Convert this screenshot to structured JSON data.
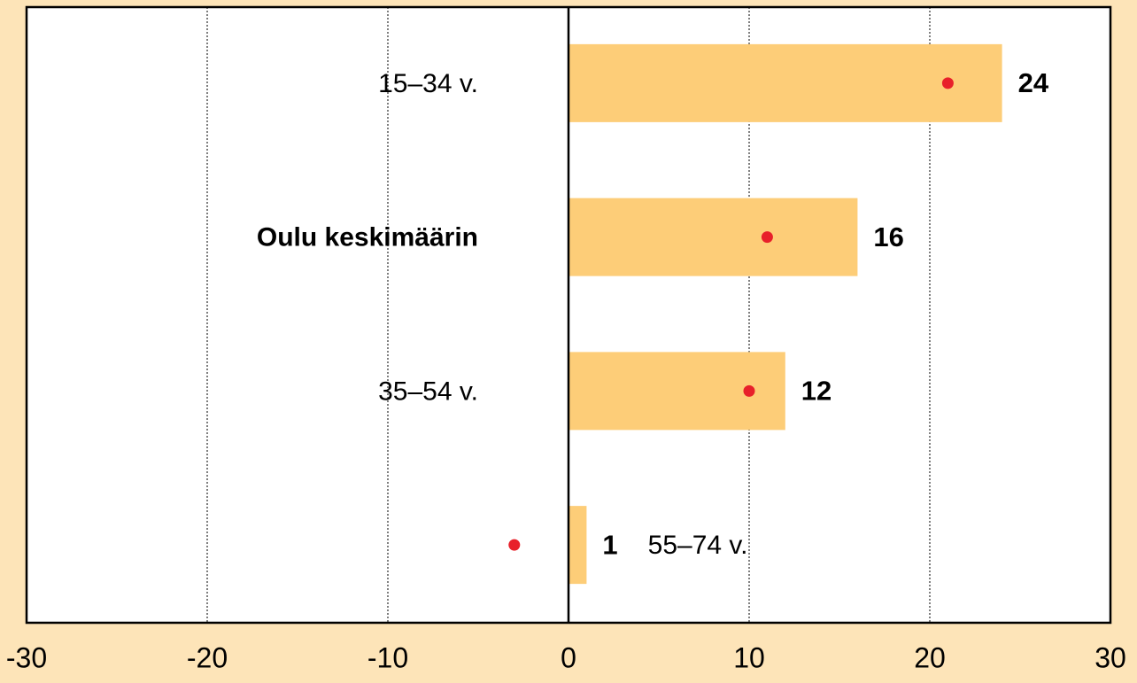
{
  "chart_data": {
    "type": "bar",
    "orientation": "horizontal",
    "categories": [
      "15–34 v.",
      "Oulu keskimäärin",
      "35–54 v.",
      "55–74 v."
    ],
    "highlight": 1,
    "series": [
      {
        "kind": "bar",
        "color": "#fdcd78",
        "values": [
          24,
          16,
          12,
          1
        ]
      },
      {
        "kind": "dot",
        "color": "#e8202a",
        "values": [
          21,
          11,
          10,
          -3
        ]
      }
    ],
    "xlim": [
      -30,
      30
    ],
    "xticks": [
      -30,
      -20,
      -10,
      0,
      10,
      20,
      30
    ],
    "grid": true
  }
}
